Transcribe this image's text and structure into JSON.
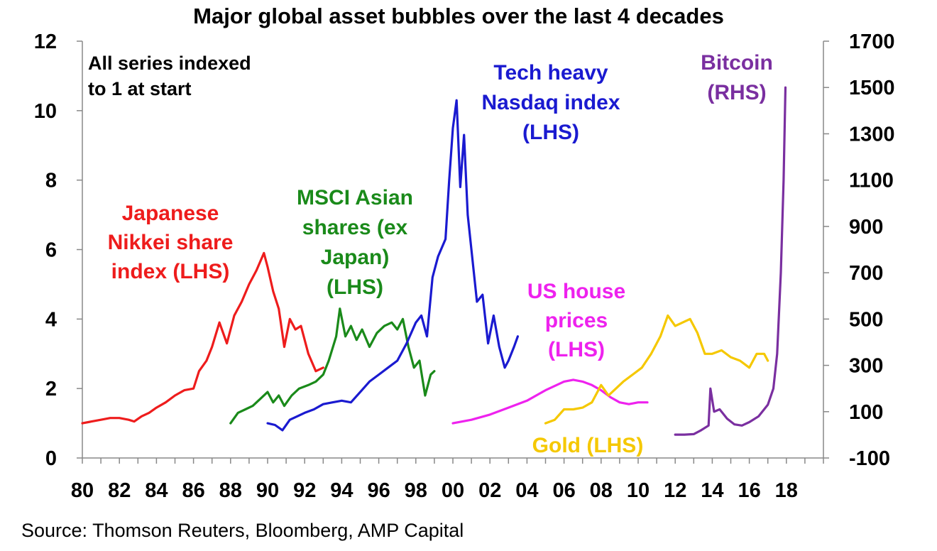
{
  "chart_data": {
    "type": "line",
    "title": "Major global asset bubbles over the last 4 decades",
    "note": [
      "All series indexed",
      "to 1 at start"
    ],
    "source": "Source: Thomson Reuters, Bloomberg, AMP Capital",
    "x_ticks": [
      "80",
      "82",
      "84",
      "86",
      "88",
      "90",
      "92",
      "94",
      "96",
      "98",
      "00",
      "02",
      "04",
      "06",
      "08",
      "10",
      "12",
      "14",
      "16",
      "18"
    ],
    "xlim": [
      1980,
      2020
    ],
    "y_left": {
      "ticks": [
        "0",
        "2",
        "4",
        "6",
        "8",
        "10",
        "12"
      ],
      "lim": [
        0,
        12
      ]
    },
    "y_right": {
      "ticks": [
        "-100",
        "100",
        "300",
        "500",
        "700",
        "900",
        "1100",
        "1300",
        "1500",
        "1700"
      ],
      "lim": [
        -100,
        1700
      ]
    },
    "series": [
      {
        "name": "Japanese Nikkei share index (LHS)",
        "label_lines": [
          "Japanese",
          "Nikkei share",
          "index (LHS)"
        ],
        "color": "#ee1c1c",
        "axis": "left",
        "points": [
          [
            1980.0,
            1.0
          ],
          [
            1980.5,
            1.05
          ],
          [
            1981.0,
            1.1
          ],
          [
            1981.5,
            1.15
          ],
          [
            1982.0,
            1.15
          ],
          [
            1982.5,
            1.1
          ],
          [
            1982.8,
            1.05
          ],
          [
            1983.2,
            1.2
          ],
          [
            1983.6,
            1.3
          ],
          [
            1984.0,
            1.45
          ],
          [
            1984.5,
            1.6
          ],
          [
            1985.0,
            1.8
          ],
          [
            1985.5,
            1.95
          ],
          [
            1986.0,
            2.0
          ],
          [
            1986.3,
            2.5
          ],
          [
            1986.7,
            2.8
          ],
          [
            1987.0,
            3.2
          ],
          [
            1987.4,
            3.9
          ],
          [
            1987.8,
            3.3
          ],
          [
            1988.2,
            4.1
          ],
          [
            1988.6,
            4.5
          ],
          [
            1989.0,
            5.0
          ],
          [
            1989.4,
            5.4
          ],
          [
            1989.8,
            5.9
          ],
          [
            1990.0,
            5.5
          ],
          [
            1990.3,
            4.8
          ],
          [
            1990.6,
            4.3
          ],
          [
            1990.9,
            3.2
          ],
          [
            1991.2,
            4.0
          ],
          [
            1991.5,
            3.7
          ],
          [
            1991.8,
            3.8
          ],
          [
            1992.2,
            3.0
          ],
          [
            1992.6,
            2.5
          ],
          [
            1993.0,
            2.6
          ]
        ]
      },
      {
        "name": "MSCI Asian shares (ex Japan) (LHS)",
        "label_lines": [
          "MSCI Asian",
          "shares (ex",
          "Japan)",
          "(LHS)"
        ],
        "color": "#1a8a1a",
        "axis": "left",
        "points": [
          [
            1988.0,
            1.0
          ],
          [
            1988.4,
            1.3
          ],
          [
            1988.8,
            1.4
          ],
          [
            1989.2,
            1.5
          ],
          [
            1989.6,
            1.7
          ],
          [
            1990.0,
            1.9
          ],
          [
            1990.3,
            1.6
          ],
          [
            1990.6,
            1.8
          ],
          [
            1990.9,
            1.5
          ],
          [
            1991.3,
            1.8
          ],
          [
            1991.7,
            2.0
          ],
          [
            1992.2,
            2.1
          ],
          [
            1992.6,
            2.2
          ],
          [
            1993.0,
            2.4
          ],
          [
            1993.3,
            2.8
          ],
          [
            1993.7,
            3.5
          ],
          [
            1993.9,
            4.3
          ],
          [
            1994.2,
            3.5
          ],
          [
            1994.5,
            3.8
          ],
          [
            1994.8,
            3.4
          ],
          [
            1995.1,
            3.7
          ],
          [
            1995.5,
            3.2
          ],
          [
            1995.9,
            3.6
          ],
          [
            1996.3,
            3.8
          ],
          [
            1996.7,
            3.9
          ],
          [
            1997.0,
            3.7
          ],
          [
            1997.3,
            4.0
          ],
          [
            1997.6,
            3.2
          ],
          [
            1997.9,
            2.6
          ],
          [
            1998.2,
            2.8
          ],
          [
            1998.5,
            1.8
          ],
          [
            1998.8,
            2.4
          ],
          [
            1999.0,
            2.5
          ]
        ]
      },
      {
        "name": "Tech heavy Nasdaq index (LHS)",
        "label_lines": [
          "Tech heavy",
          "Nasdaq index",
          "(LHS)"
        ],
        "color": "#1a1ad0",
        "axis": "left",
        "points": [
          [
            1990.0,
            1.0
          ],
          [
            1990.4,
            0.95
          ],
          [
            1990.8,
            0.8
          ],
          [
            1991.2,
            1.1
          ],
          [
            1991.6,
            1.2
          ],
          [
            1992.0,
            1.3
          ],
          [
            1992.5,
            1.4
          ],
          [
            1993.0,
            1.55
          ],
          [
            1993.5,
            1.6
          ],
          [
            1994.0,
            1.65
          ],
          [
            1994.5,
            1.6
          ],
          [
            1995.0,
            1.9
          ],
          [
            1995.5,
            2.2
          ],
          [
            1996.0,
            2.4
          ],
          [
            1996.5,
            2.6
          ],
          [
            1997.0,
            2.8
          ],
          [
            1997.5,
            3.3
          ],
          [
            1998.0,
            3.9
          ],
          [
            1998.3,
            4.1
          ],
          [
            1998.6,
            3.5
          ],
          [
            1998.9,
            5.2
          ],
          [
            1999.2,
            5.8
          ],
          [
            1999.6,
            6.3
          ],
          [
            1999.8,
            8.0
          ],
          [
            2000.0,
            9.5
          ],
          [
            2000.2,
            10.3
          ],
          [
            2000.4,
            7.8
          ],
          [
            2000.6,
            9.3
          ],
          [
            2000.8,
            7.0
          ],
          [
            2001.0,
            6.0
          ],
          [
            2001.3,
            4.5
          ],
          [
            2001.6,
            4.7
          ],
          [
            2001.9,
            3.3
          ],
          [
            2002.2,
            4.1
          ],
          [
            2002.5,
            3.2
          ],
          [
            2002.8,
            2.6
          ],
          [
            2003.0,
            2.8
          ],
          [
            2003.3,
            3.2
          ],
          [
            2003.5,
            3.5
          ]
        ]
      },
      {
        "name": "US house prices (LHS)",
        "label_lines": [
          "US house",
          "prices",
          "(LHS)"
        ],
        "color": "#ee22ee",
        "axis": "left",
        "points": [
          [
            2000.0,
            1.0
          ],
          [
            2001.0,
            1.1
          ],
          [
            2002.0,
            1.25
          ],
          [
            2003.0,
            1.45
          ],
          [
            2004.0,
            1.65
          ],
          [
            2005.0,
            1.95
          ],
          [
            2006.0,
            2.2
          ],
          [
            2006.5,
            2.25
          ],
          [
            2007.0,
            2.2
          ],
          [
            2007.5,
            2.1
          ],
          [
            2008.0,
            1.95
          ],
          [
            2008.5,
            1.75
          ],
          [
            2009.0,
            1.6
          ],
          [
            2009.5,
            1.55
          ],
          [
            2010.0,
            1.6
          ],
          [
            2010.5,
            1.6
          ]
        ]
      },
      {
        "name": "Gold (LHS)",
        "label_lines": [
          "Gold (LHS)"
        ],
        "color": "#f5c800",
        "axis": "left",
        "points": [
          [
            2005.0,
            1.0
          ],
          [
            2005.5,
            1.1
          ],
          [
            2006.0,
            1.4
          ],
          [
            2006.5,
            1.4
          ],
          [
            2007.0,
            1.45
          ],
          [
            2007.5,
            1.6
          ],
          [
            2008.0,
            2.1
          ],
          [
            2008.4,
            1.8
          ],
          [
            2008.8,
            2.0
          ],
          [
            2009.2,
            2.2
          ],
          [
            2009.7,
            2.4
          ],
          [
            2010.2,
            2.6
          ],
          [
            2010.7,
            3.0
          ],
          [
            2011.2,
            3.5
          ],
          [
            2011.6,
            4.1
          ],
          [
            2012.0,
            3.8
          ],
          [
            2012.4,
            3.9
          ],
          [
            2012.8,
            4.0
          ],
          [
            2013.2,
            3.6
          ],
          [
            2013.6,
            3.0
          ],
          [
            2014.0,
            3.0
          ],
          [
            2014.5,
            3.1
          ],
          [
            2015.0,
            2.9
          ],
          [
            2015.5,
            2.8
          ],
          [
            2016.0,
            2.6
          ],
          [
            2016.4,
            3.0
          ],
          [
            2016.8,
            3.0
          ],
          [
            2017.0,
            2.8
          ]
        ]
      },
      {
        "name": "Bitcoin (RHS)",
        "label_lines": [
          "Bitcoin",
          "(RHS)"
        ],
        "color": "#7a2fa0",
        "axis": "right",
        "points": [
          [
            2012.0,
            1
          ],
          [
            2012.5,
            1
          ],
          [
            2013.0,
            3
          ],
          [
            2013.4,
            20
          ],
          [
            2013.8,
            40
          ],
          [
            2013.9,
            200
          ],
          [
            2014.1,
            100
          ],
          [
            2014.4,
            110
          ],
          [
            2014.8,
            70
          ],
          [
            2015.2,
            45
          ],
          [
            2015.6,
            40
          ],
          [
            2016.0,
            55
          ],
          [
            2016.5,
            80
          ],
          [
            2017.0,
            130
          ],
          [
            2017.3,
            200
          ],
          [
            2017.5,
            350
          ],
          [
            2017.7,
            700
          ],
          [
            2017.85,
            1100
          ],
          [
            2017.95,
            1500
          ]
        ]
      }
    ]
  }
}
